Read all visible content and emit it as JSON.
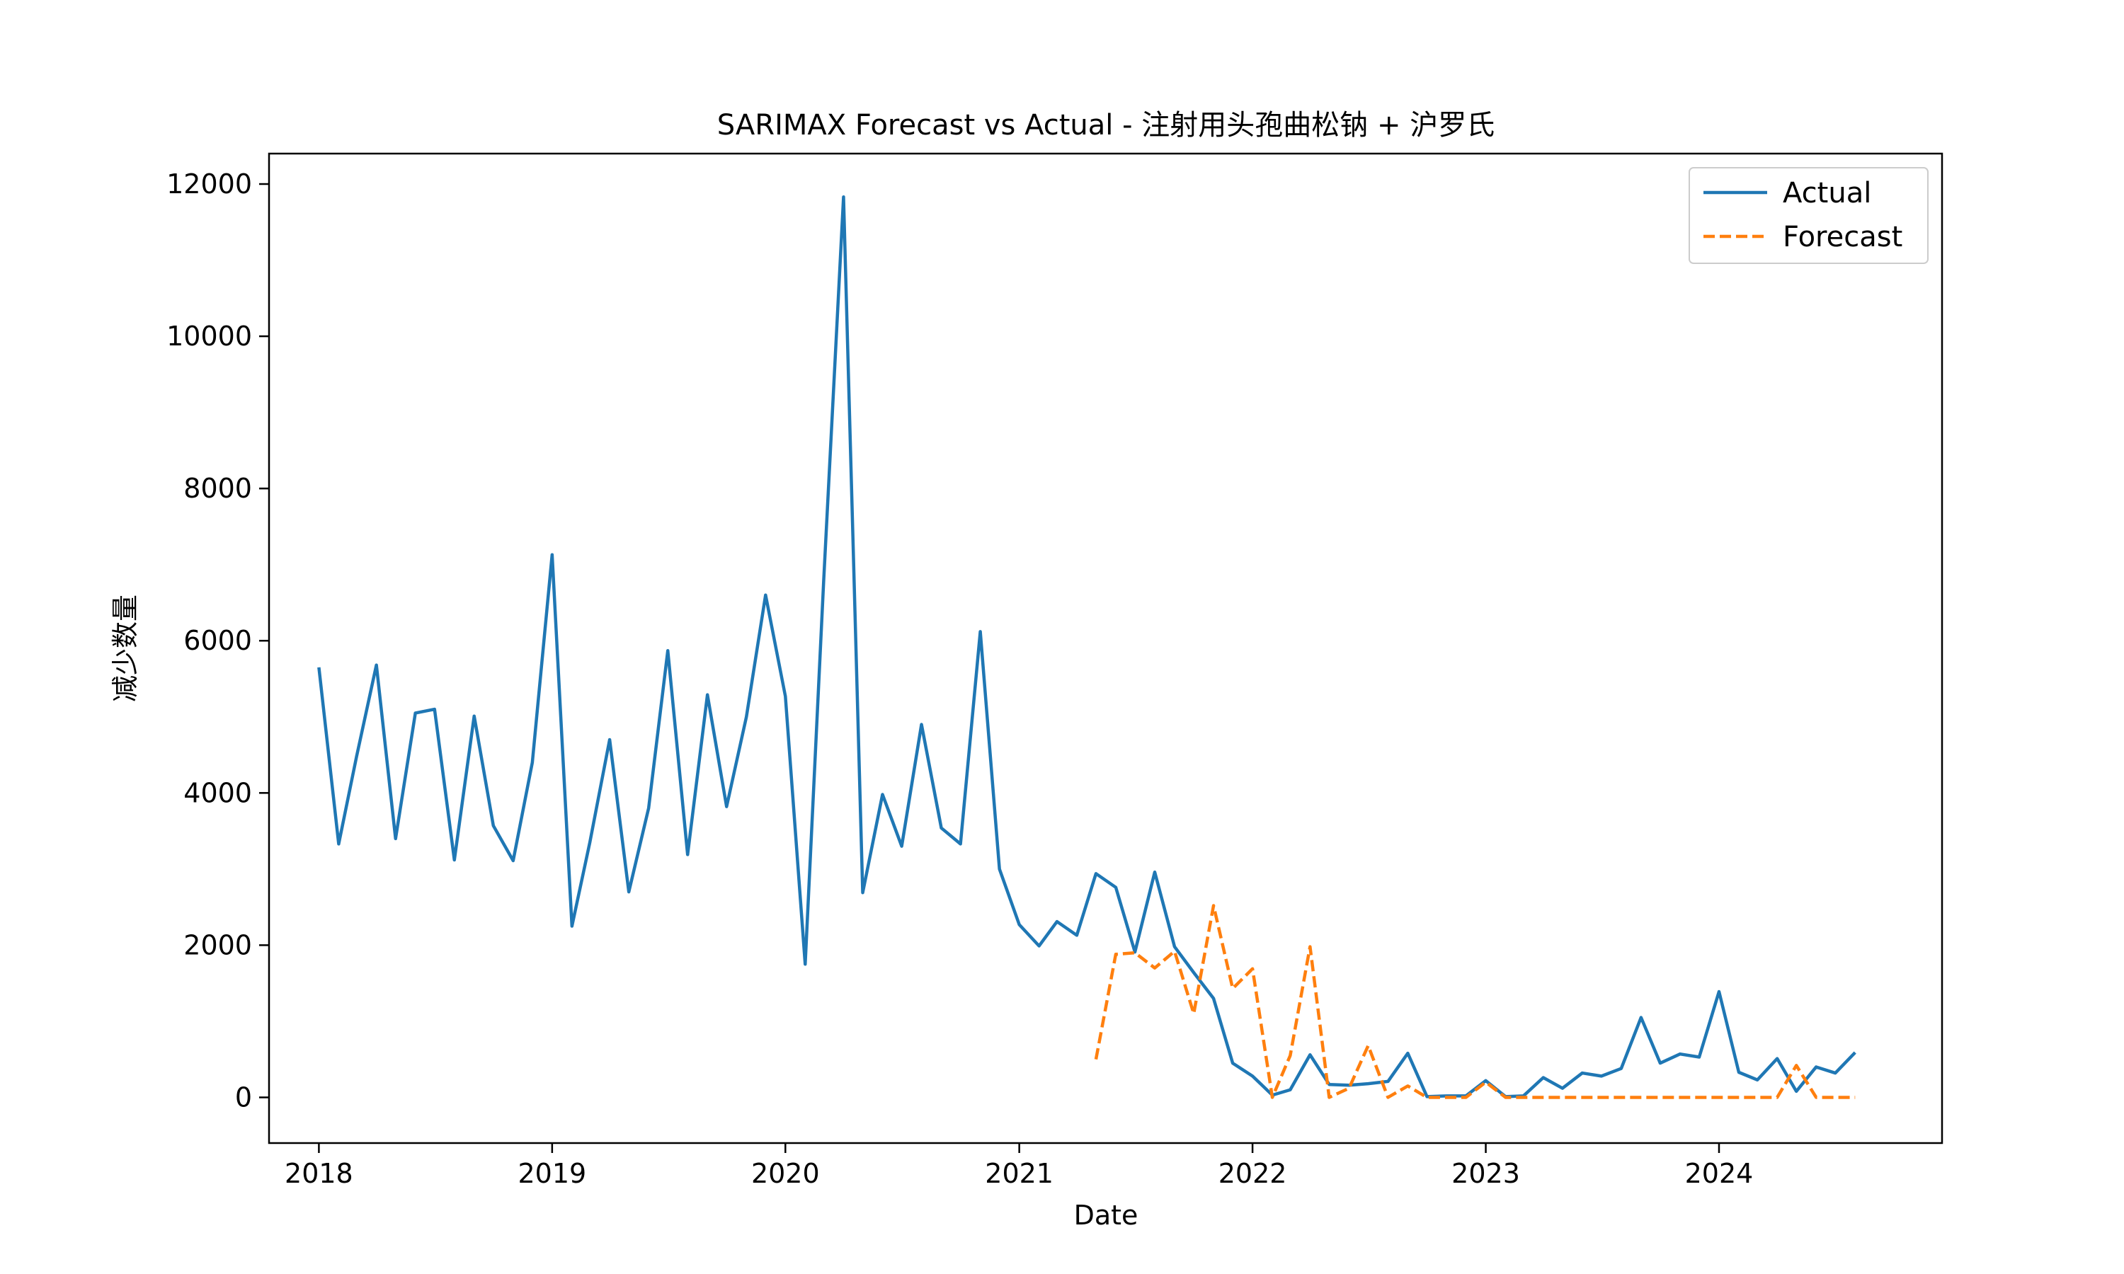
{
  "chart_data": {
    "type": "line",
    "title": "SARIMAX Forecast vs Actual - 注射用头孢曲松钠 + 沪罗氏",
    "xlabel": "Date",
    "ylabel": "减少数量",
    "xlim": [
      "2017-10-15",
      "2024-12-15"
    ],
    "ylim": [
      -600,
      12400
    ],
    "x_ticks": [
      "2018",
      "2019",
      "2020",
      "2021",
      "2022",
      "2023",
      "2024"
    ],
    "y_ticks": [
      0,
      2000,
      4000,
      6000,
      8000,
      10000,
      12000
    ],
    "grid": false,
    "legend_position": "top-right",
    "colors": {
      "actual": "#1f77b4",
      "forecast": "#ff7f0e"
    },
    "series": [
      {
        "name": "Actual",
        "style": "solid",
        "x": [
          "2018-01",
          "2018-02",
          "2018-03",
          "2018-04",
          "2018-05",
          "2018-06",
          "2018-07",
          "2018-08",
          "2018-09",
          "2018-10",
          "2018-11",
          "2018-12",
          "2019-01",
          "2019-02",
          "2019-03",
          "2019-04",
          "2019-05",
          "2019-06",
          "2019-07",
          "2019-08",
          "2019-09",
          "2019-10",
          "2019-11",
          "2019-12",
          "2020-01",
          "2020-02",
          "2020-03",
          "2020-04",
          "2020-05",
          "2020-06",
          "2020-07",
          "2020-08",
          "2020-09",
          "2020-10",
          "2020-11",
          "2020-12",
          "2021-01",
          "2021-02",
          "2021-03",
          "2021-04",
          "2021-05",
          "2021-06",
          "2021-07",
          "2021-08",
          "2021-09",
          "2021-10",
          "2021-11",
          "2021-12",
          "2022-01",
          "2022-02",
          "2022-03",
          "2022-04",
          "2022-05",
          "2022-06",
          "2022-07",
          "2022-08",
          "2022-09",
          "2022-10",
          "2022-11",
          "2022-12",
          "2023-01",
          "2023-02",
          "2023-03",
          "2023-04",
          "2023-05",
          "2023-06",
          "2023-07",
          "2023-08",
          "2023-09",
          "2023-10",
          "2023-11",
          "2023-12",
          "2024-01",
          "2024-02",
          "2024-03",
          "2024-04",
          "2024-05",
          "2024-06",
          "2024-07",
          "2024-08"
        ],
        "values": [
          5650,
          3330,
          4480,
          5680,
          3400,
          5050,
          5100,
          3120,
          5010,
          3570,
          3110,
          4400,
          7130,
          2250,
          3350,
          4700,
          2700,
          3800,
          5870,
          3190,
          5290,
          3820,
          5000,
          6600,
          5270,
          1750,
          6800,
          11830,
          2690,
          3980,
          3300,
          4900,
          3540,
          3330,
          6120,
          3000,
          2270,
          1990,
          2310,
          2130,
          2940,
          2760,
          1910,
          2960,
          1980,
          1640,
          1300,
          450,
          280,
          30,
          100,
          560,
          170,
          160,
          180,
          210,
          580,
          10,
          20,
          20,
          220,
          10,
          20,
          260,
          120,
          320,
          280,
          380,
          1050,
          450,
          570,
          530,
          1390,
          330,
          230,
          510,
          80,
          400,
          320,
          590
        ]
      },
      {
        "name": "Forecast",
        "style": "dashed",
        "x": [
          "2021-05",
          "2021-06",
          "2021-07",
          "2021-08",
          "2021-09",
          "2021-10",
          "2021-11",
          "2021-12",
          "2022-01",
          "2022-02",
          "2022-03",
          "2022-04",
          "2022-05",
          "2022-06",
          "2022-07",
          "2022-08",
          "2022-09",
          "2022-10",
          "2022-11",
          "2022-12",
          "2023-01",
          "2023-02",
          "2023-03",
          "2023-04",
          "2023-05",
          "2023-06",
          "2023-07",
          "2023-08",
          "2023-09",
          "2023-10",
          "2023-11",
          "2023-12",
          "2024-01",
          "2024-02",
          "2024-03",
          "2024-04",
          "2024-05",
          "2024-06",
          "2024-07",
          "2024-08"
        ],
        "values": [
          500,
          1880,
          1900,
          1700,
          1920,
          1100,
          2520,
          1430,
          1690,
          0,
          550,
          1980,
          0,
          120,
          680,
          0,
          150,
          0,
          0,
          0,
          200,
          0,
          0,
          0,
          0,
          0,
          0,
          0,
          0,
          0,
          0,
          0,
          0,
          0,
          0,
          0,
          420,
          0,
          0,
          0
        ]
      }
    ]
  }
}
